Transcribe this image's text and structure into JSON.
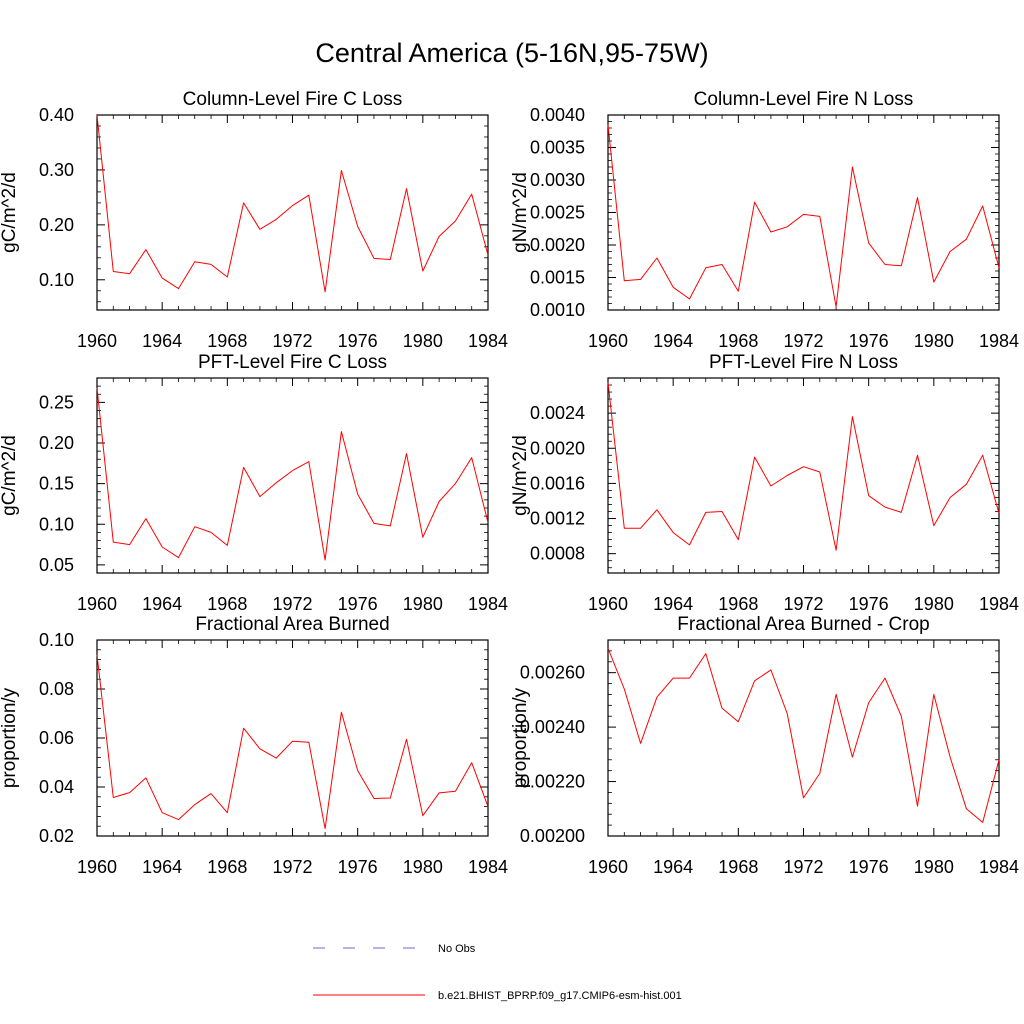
{
  "title": "Central America (5-16N,95-75W)",
  "legend": [
    {
      "label": "No Obs",
      "color": "#6a6ad8",
      "dash": true
    },
    {
      "label": "b.e21.BHIST_BPRP.f09_g17.CMIP6-esm-hist.001",
      "color": "#ff0000",
      "dash": false
    }
  ],
  "chart_data": [
    {
      "type": "line",
      "title": "Column-Level Fire C Loss",
      "ylabel": "gC/m^2/d",
      "xlim": [
        1960,
        1984
      ],
      "xticks": [
        "1960",
        "1964",
        "1968",
        "1972",
        "1976",
        "1980",
        "1984"
      ],
      "ylim": [
        0.045,
        0.4
      ],
      "yticks": [
        "0.10",
        "0.20",
        "0.30",
        "0.40"
      ],
      "color": "#ff0000",
      "x": [
        1960,
        1961,
        1962,
        1963,
        1964,
        1965,
        1966,
        1967,
        1968,
        1969,
        1970,
        1971,
        1972,
        1973,
        1974,
        1975,
        1976,
        1977,
        1978,
        1979,
        1980,
        1981,
        1982,
        1983,
        1984
      ],
      "values": [
        0.4,
        0.115,
        0.111,
        0.155,
        0.103,
        0.084,
        0.133,
        0.128,
        0.105,
        0.24,
        0.192,
        0.21,
        0.235,
        0.254,
        0.078,
        0.299,
        0.197,
        0.139,
        0.137,
        0.266,
        0.116,
        0.179,
        0.207,
        0.256,
        0.145
      ]
    },
    {
      "type": "line",
      "title": "Column-Level Fire N Loss",
      "ylabel": "gN/m^2/d",
      "xlim": [
        1960,
        1984
      ],
      "xticks": [
        "1960",
        "1964",
        "1968",
        "1972",
        "1976",
        "1980",
        "1984"
      ],
      "ylim": [
        0.001,
        0.004
      ],
      "yticks": [
        "0.0010",
        "0.0015",
        "0.0020",
        "0.0025",
        "0.0030",
        "0.0035",
        "0.0040"
      ],
      "color": "#ff0000",
      "x": [
        1960,
        1961,
        1962,
        1963,
        1964,
        1965,
        1966,
        1967,
        1968,
        1969,
        1970,
        1971,
        1972,
        1973,
        1974,
        1975,
        1976,
        1977,
        1978,
        1979,
        1980,
        1981,
        1982,
        1983,
        1984
      ],
      "values": [
        0.00385,
        0.00145,
        0.00147,
        0.0018,
        0.00135,
        0.00117,
        0.00165,
        0.0017,
        0.00129,
        0.00266,
        0.0022,
        0.00228,
        0.00247,
        0.00244,
        0.00105,
        0.0032,
        0.00203,
        0.0017,
        0.00168,
        0.00273,
        0.00143,
        0.0019,
        0.00209,
        0.0026,
        0.00165
      ]
    },
    {
      "type": "line",
      "title": "PFT-Level Fire C Loss",
      "ylabel": "gC/m^2/d",
      "xlim": [
        1960,
        1984
      ],
      "xticks": [
        "1960",
        "1964",
        "1968",
        "1972",
        "1976",
        "1980",
        "1984"
      ],
      "ylim": [
        0.04,
        0.28
      ],
      "yticks": [
        "0.05",
        "0.10",
        "0.15",
        "0.20",
        "0.25"
      ],
      "color": "#ff0000",
      "x": [
        1960,
        1961,
        1962,
        1963,
        1964,
        1965,
        1966,
        1967,
        1968,
        1969,
        1970,
        1971,
        1972,
        1973,
        1974,
        1975,
        1976,
        1977,
        1978,
        1979,
        1980,
        1981,
        1982,
        1983,
        1984
      ],
      "values": [
        0.268,
        0.078,
        0.075,
        0.107,
        0.072,
        0.059,
        0.097,
        0.09,
        0.074,
        0.17,
        0.134,
        0.151,
        0.166,
        0.177,
        0.056,
        0.214,
        0.137,
        0.101,
        0.098,
        0.187,
        0.084,
        0.128,
        0.15,
        0.182,
        0.102
      ]
    },
    {
      "type": "line",
      "title": "PFT-Level Fire N Loss",
      "ylabel": "gN/m^2/d",
      "xlim": [
        1960,
        1984
      ],
      "xticks": [
        "1960",
        "1964",
        "1968",
        "1972",
        "1976",
        "1980",
        "1984"
      ],
      "ylim": [
        0.00058,
        0.0028
      ],
      "yticks": [
        "0.0008",
        "0.0012",
        "0.0016",
        "0.0020",
        "0.0024"
      ],
      "color": "#ff0000",
      "x": [
        1960,
        1961,
        1962,
        1963,
        1964,
        1965,
        1966,
        1967,
        1968,
        1969,
        1970,
        1971,
        1972,
        1973,
        1974,
        1975,
        1976,
        1977,
        1978,
        1979,
        1980,
        1981,
        1982,
        1983,
        1984
      ],
      "values": [
        0.00275,
        0.00109,
        0.00109,
        0.0013,
        0.00104,
        0.0009,
        0.00127,
        0.00128,
        0.00096,
        0.0019,
        0.00157,
        0.00169,
        0.00179,
        0.00173,
        0.00084,
        0.00236,
        0.00146,
        0.00133,
        0.00127,
        0.00192,
        0.00112,
        0.00144,
        0.00159,
        0.00192,
        0.00126
      ]
    },
    {
      "type": "line",
      "title": "Fractional Area Burned",
      "ylabel": "proportion/y",
      "xlim": [
        1960,
        1984
      ],
      "xticks": [
        "1960",
        "1964",
        "1968",
        "1972",
        "1976",
        "1980",
        "1984"
      ],
      "ylim": [
        0.02,
        0.1
      ],
      "yticks": [
        "0.02",
        "0.04",
        "0.06",
        "0.08",
        "0.10"
      ],
      "color": "#ff0000",
      "x": [
        1960,
        1961,
        1962,
        1963,
        1964,
        1965,
        1966,
        1967,
        1968,
        1969,
        1970,
        1971,
        1972,
        1973,
        1974,
        1975,
        1976,
        1977,
        1978,
        1979,
        1980,
        1981,
        1982,
        1983,
        1984
      ],
      "values": [
        0.094,
        0.0357,
        0.0377,
        0.0437,
        0.0295,
        0.0267,
        0.0328,
        0.0373,
        0.0295,
        0.064,
        0.0556,
        0.0518,
        0.0587,
        0.0583,
        0.023,
        0.0705,
        0.0467,
        0.0353,
        0.0355,
        0.0595,
        0.0283,
        0.0376,
        0.0383,
        0.0499,
        0.032
      ]
    },
    {
      "type": "line",
      "title": "Fractional Area Burned - Crop",
      "ylabel": "proportion/y",
      "xlim": [
        1960,
        1984
      ],
      "xticks": [
        "1960",
        "1964",
        "1968",
        "1972",
        "1976",
        "1980",
        "1984"
      ],
      "ylim": [
        0.002,
        0.00272
      ],
      "yticks": [
        "0.00200",
        "0.00220",
        "0.00240",
        "0.00260"
      ],
      "color": "#ff0000",
      "x": [
        1960,
        1961,
        1962,
        1963,
        1964,
        1965,
        1966,
        1967,
        1968,
        1969,
        1970,
        1971,
        1972,
        1973,
        1974,
        1975,
        1976,
        1977,
        1978,
        1979,
        1980,
        1981,
        1982,
        1983,
        1984
      ],
      "values": [
        0.00269,
        0.00254,
        0.00234,
        0.00251,
        0.00258,
        0.00258,
        0.00267,
        0.00247,
        0.00242,
        0.00257,
        0.00261,
        0.00245,
        0.00214,
        0.00223,
        0.00252,
        0.00229,
        0.00249,
        0.00258,
        0.00244,
        0.00211,
        0.00252,
        0.00229,
        0.0021,
        0.00205,
        0.00228
      ]
    }
  ]
}
